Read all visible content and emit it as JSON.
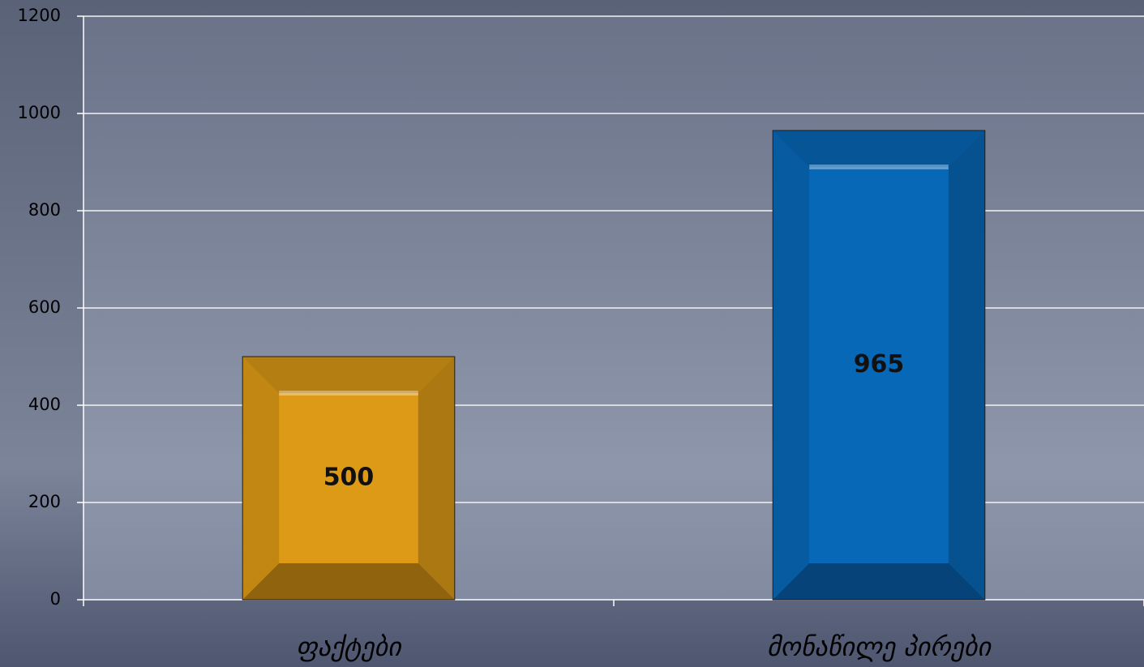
{
  "chart_data": {
    "type": "bar",
    "categories": [
      "ფაქტები",
      "მონაწილე პირები"
    ],
    "values": [
      500,
      965
    ],
    "colors": [
      "#dd9a16",
      "#0868b8"
    ],
    "ylim": [
      0,
      1200
    ],
    "yticks": [
      0,
      200,
      400,
      600,
      800,
      1000,
      1200
    ],
    "grid": true
  }
}
